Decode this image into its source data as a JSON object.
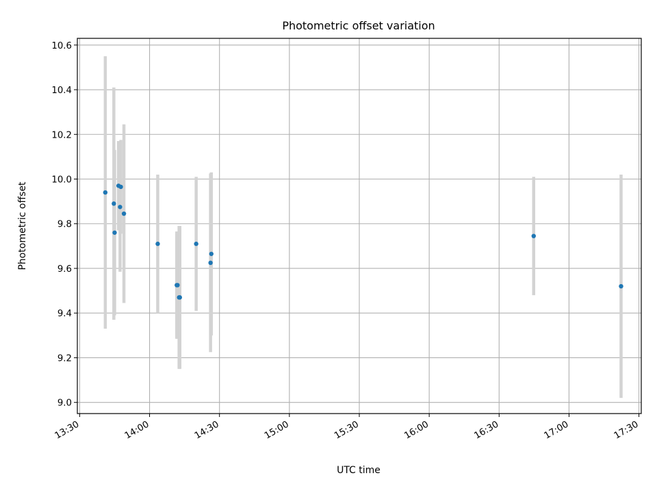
{
  "chart_data": {
    "type": "scatter",
    "title": "Photometric offset variation",
    "xlabel": "UTC time",
    "ylabel": "Photometric offset",
    "x_axis_type": "time",
    "xlim": [
      "13:29",
      "17:31"
    ],
    "ylim": [
      8.95,
      10.63
    ],
    "x_ticks": [
      "13:30",
      "14:00",
      "14:30",
      "15:00",
      "15:30",
      "16:00",
      "16:30",
      "17:00",
      "17:30"
    ],
    "y_ticks": [
      9.0,
      9.2,
      9.4,
      9.6,
      9.8,
      10.0,
      10.2,
      10.4,
      10.6
    ],
    "y_tick_labels": [
      "9.0",
      "9.2",
      "9.4",
      "9.6",
      "9.8",
      "10.0",
      "10.2",
      "10.4",
      "10.6"
    ],
    "grid": true,
    "marker_color": "#1f77b4",
    "errorbar_color": "#d3d3d3",
    "points": [
      {
        "x": "13:41:00",
        "y": 9.94,
        "err": 0.61
      },
      {
        "x": "13:44:40",
        "y": 9.89,
        "err": 0.52
      },
      {
        "x": "13:45:00",
        "y": 9.76,
        "err": 0.37
      },
      {
        "x": "13:46:40",
        "y": 9.97,
        "err": 0.2
      },
      {
        "x": "13:47:20",
        "y": 9.875,
        "err": 0.29
      },
      {
        "x": "13:47:40",
        "y": 9.965,
        "err": 0.21
      },
      {
        "x": "13:49:00",
        "y": 9.845,
        "err": 0.4
      },
      {
        "x": "14:03:30",
        "y": 9.71,
        "err": 0.31
      },
      {
        "x": "14:11:40",
        "y": 9.525,
        "err": 0.24
      },
      {
        "x": "14:12:00",
        "y": 9.525,
        "err": 0.24
      },
      {
        "x": "14:12:40",
        "y": 9.47,
        "err": 0.32
      },
      {
        "x": "14:13:00",
        "y": 9.47,
        "err": 0.32
      },
      {
        "x": "14:20:00",
        "y": 9.71,
        "err": 0.3
      },
      {
        "x": "14:26:10",
        "y": 9.625,
        "err": 0.4
      },
      {
        "x": "14:26:30",
        "y": 9.665,
        "err": 0.365
      },
      {
        "x": "16:44:50",
        "y": 9.745,
        "err": 0.265
      },
      {
        "x": "17:22:20",
        "y": 9.52,
        "err": 0.5
      }
    ]
  }
}
